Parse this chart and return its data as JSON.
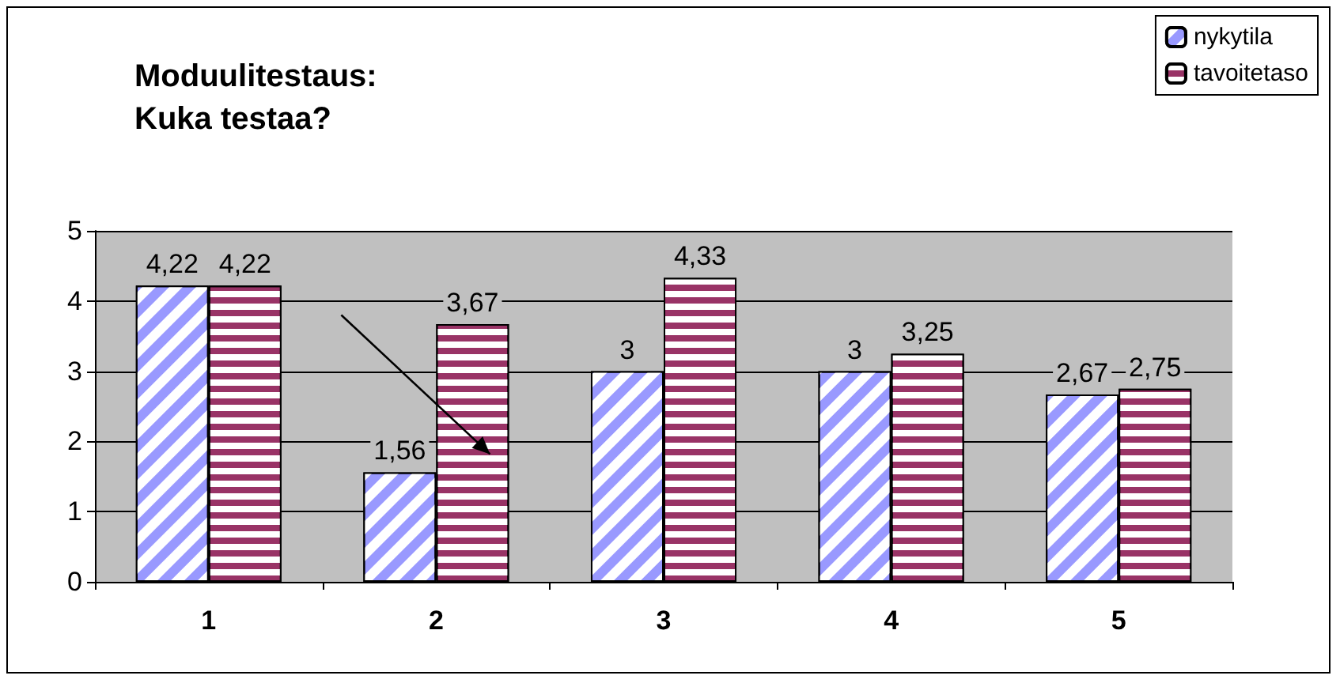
{
  "chart_data": {
    "type": "bar",
    "title": "Moduulitestaus:\nKuka testaa?",
    "categories": [
      "1",
      "2",
      "3",
      "4",
      "5"
    ],
    "series": [
      {
        "name": "nykytila",
        "color": "#9999ff",
        "values": [
          4.22,
          1.56,
          3,
          3,
          2.67
        ],
        "value_labels": [
          "4,22",
          "1,56",
          "3",
          "3",
          "2,67"
        ]
      },
      {
        "name": "tavoitetaso",
        "color": "#993366",
        "values": [
          4.22,
          3.67,
          4.33,
          3.25,
          2.75
        ],
        "value_labels": [
          "4,22",
          "3,67",
          "4,33",
          "3,25",
          "2,75"
        ]
      }
    ],
    "ylim": [
      0,
      5
    ],
    "yticks": [
      0,
      1,
      2,
      3,
      4,
      5
    ],
    "grid": "y",
    "legend": "top right"
  }
}
